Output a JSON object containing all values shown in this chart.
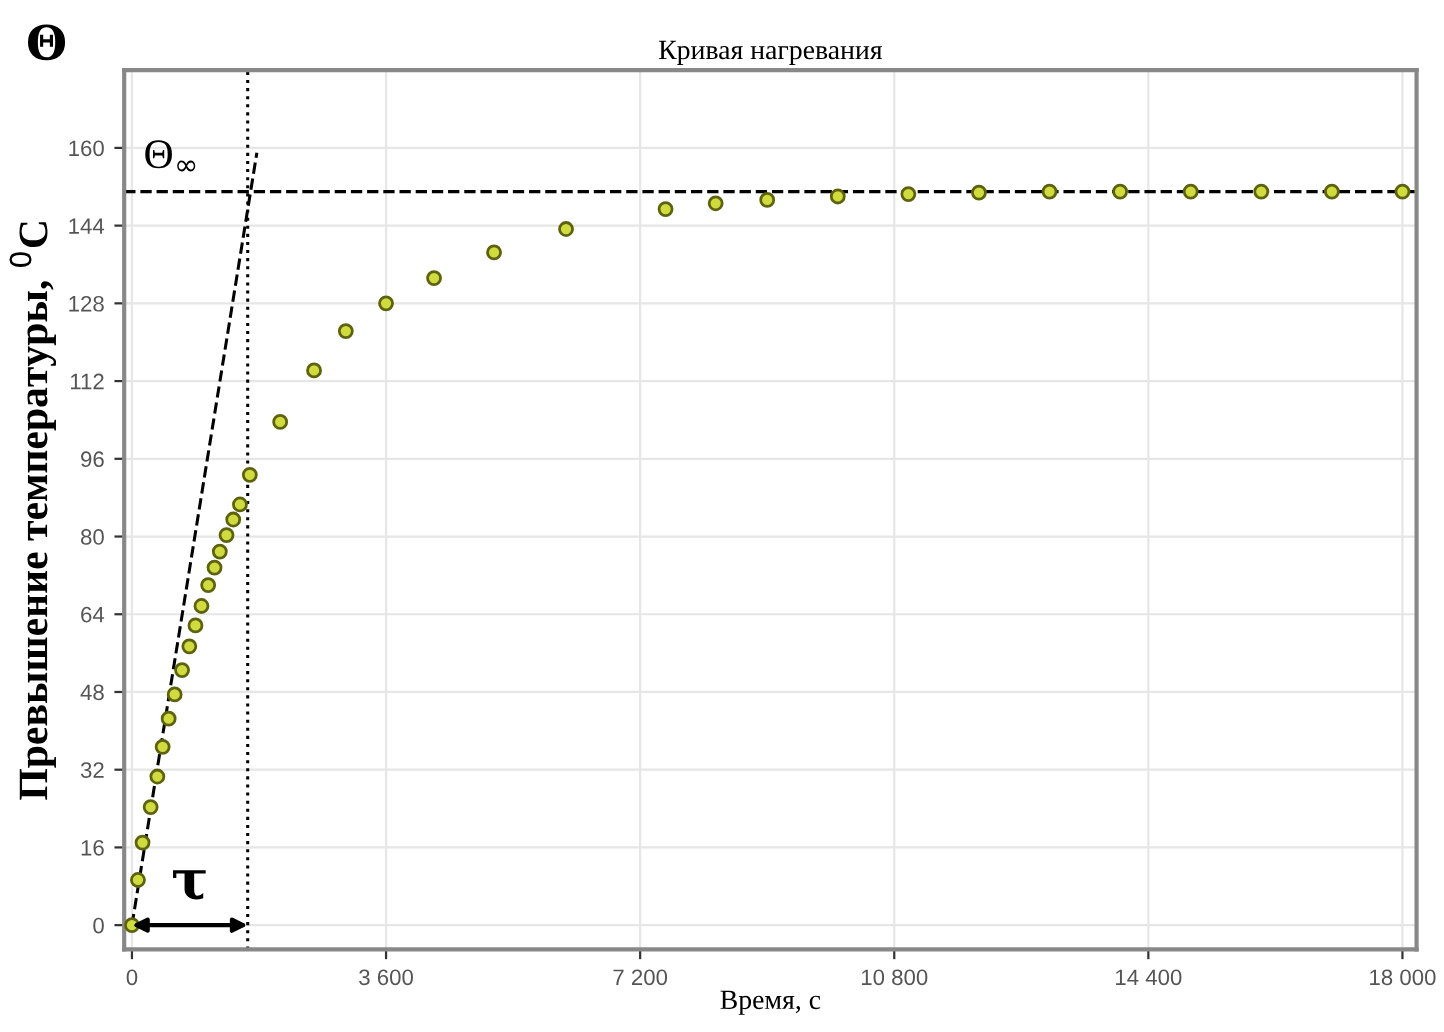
{
  "chart_data": {
    "type": "scatter",
    "title": "Кривая нагревания",
    "xlabel": "Время, с",
    "ylabel": "Превышение температуры, $^{0}$C",
    "annotations": [
      "Θ"
    ],
    "xlim": [
      -110,
      18200
    ],
    "ylim": [
      -5,
      176
    ],
    "xticks": [
      0,
      {
        "value": 3600,
        "label": "3 600"
      },
      {
        "value": 7200,
        "label": "7 200"
      },
      {
        "value": 10800,
        "label": "10 800"
      },
      {
        "value": 14400,
        "label": "14 400"
      },
      {
        "value": 18000,
        "label": "18 000"
      }
    ],
    "yticks": [
      0,
      16,
      32,
      48,
      64,
      80,
      96,
      112,
      128,
      144,
      160
    ],
    "grid": true,
    "marker": "circle",
    "series": [
      {
        "color": "#cfdc3c",
        "x": [
          0,
          85,
          150,
          265,
          360,
          435,
          520,
          605,
          710,
          813,
          900,
          985,
          1080,
          1170,
          1245,
          1340,
          1435,
          1530,
          1670,
          2100,
          2580,
          3030,
          3600,
          4280,
          5130,
          6150,
          7560,
          8270,
          9000,
          10000,
          11000,
          12000,
          13000,
          14000,
          15000,
          16000,
          17000,
          18000
        ],
        "values": [
          0,
          9.3,
          17,
          24.3,
          30.6,
          36.7,
          42.5,
          47.5,
          52.5,
          57.4,
          61.7,
          65.7,
          70,
          73.6,
          76.9,
          80.3,
          83.5,
          86.6,
          92.7,
          103.6,
          114.2,
          122.3,
          128,
          133.2,
          138.5,
          143.3,
          147.4,
          148.6,
          149.3,
          150,
          150.5,
          150.8,
          151,
          151,
          151,
          151,
          151,
          151
        ]
      },
      {
        "type": "line",
        "color": "#000000",
        "line_style": "dashed",
        "marker": "none",
        "x": [
          0,
          1770
        ],
        "values": [
          0,
          159
        ]
      }
    ],
    "ref_lines": [
      {
        "axis": "y",
        "value": 151,
        "label": "Θ$_{∞}$",
        "color": "#000000",
        "line_style": "dashed"
      },
      {
        "axis": "x",
        "value": 1640,
        "label": "τ",
        "color": "#000000",
        "line_style": "dotted"
      }
    ]
  }
}
